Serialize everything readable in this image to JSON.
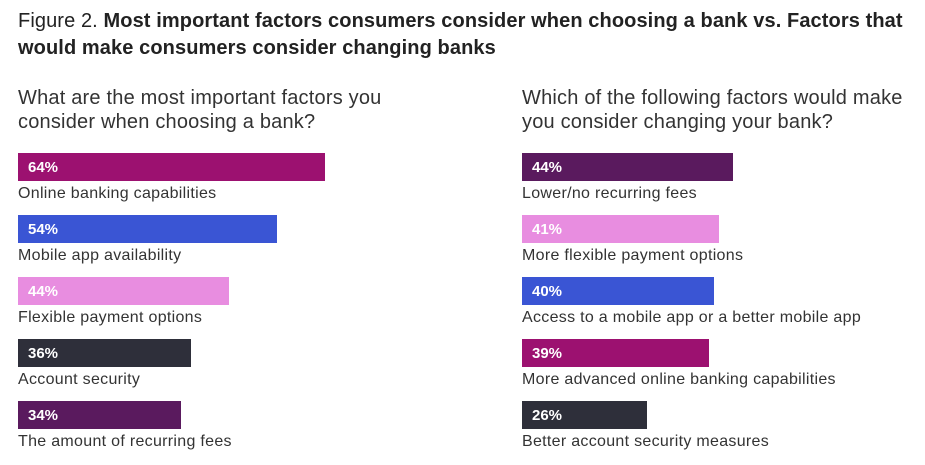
{
  "title": {
    "prefix": "Figure 2.",
    "text": "Most important factors consumers consider when choosing a bank vs. Factors that would make consumers consider changing banks"
  },
  "chart_data": [
    {
      "type": "bar",
      "orientation": "horizontal",
      "title": "What are the most important factors you consider when choosing a bank?",
      "categories": [
        "Online banking capabilities",
        "Mobile app availability",
        "Flexible payment options",
        "Account security",
        "The amount of recurring fees"
      ],
      "values": [
        64,
        54,
        44,
        36,
        34
      ],
      "value_labels": [
        "64%",
        "54%",
        "44%",
        "36%",
        "34%"
      ],
      "colors": [
        "#9c1170",
        "#3a55d4",
        "#e88de0",
        "#2e2f3a",
        "#5a1a5e"
      ],
      "xlim": [
        0,
        100
      ],
      "unit": "%"
    },
    {
      "type": "bar",
      "orientation": "horizontal",
      "title": "Which of the following factors would make you consider changing your bank?",
      "categories": [
        "Lower/no recurring fees",
        "More flexible payment options",
        "Access to a mobile app or a better mobile app",
        "More advanced online banking capabilities",
        "Better account security measures"
      ],
      "values": [
        44,
        41,
        40,
        39,
        26
      ],
      "value_labels": [
        "44%",
        "41%",
        "40%",
        "39%",
        "26%"
      ],
      "colors": [
        "#5a1a5e",
        "#e88de0",
        "#3a55d4",
        "#9c1170",
        "#2e2f3a"
      ],
      "xlim": [
        0,
        100
      ],
      "unit": "%"
    }
  ]
}
